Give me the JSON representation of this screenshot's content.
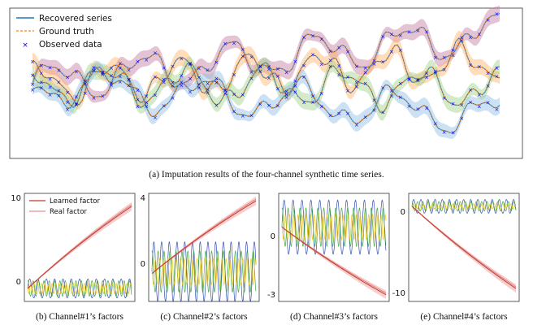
{
  "colors": {
    "recovered": "#1f77b4",
    "ground_truth": "#ff7f0e",
    "observed": "#0000ee",
    "channel_band": [
      "#c27ba0",
      "#ffb266",
      "#9fd28a",
      "#8fbfe6"
    ],
    "learned": "#c0392b",
    "real": "#e57373",
    "periodic": [
      "#1f3ea8",
      "#2ca02c",
      "#f2c200",
      "#7e3fbf"
    ]
  },
  "chart_data": [
    {
      "type": "line",
      "caption": "(a) Imputation results of the four-channel synthetic time series.",
      "legend": {
        "placement": "top-left",
        "entries": [
          "Recovered series",
          "Ground truth",
          "Observed data"
        ]
      },
      "series_count": 4,
      "n_points": 161,
      "start_values": [
        0,
        0,
        0,
        0
      ],
      "trend_end": [
        2.4,
        1.0,
        -0.2,
        -1.5
      ],
      "period": [
        30,
        24,
        27,
        33
      ],
      "grid": false
    },
    {
      "type": "line",
      "caption": "(b) Channel#1’s factors",
      "legend": {
        "placement": "top-left",
        "entries": [
          "Learned factor",
          "Real factor"
        ]
      },
      "yticks": [
        0,
        10
      ],
      "ylim": [
        -1.5,
        11
      ],
      "trend": [
        0,
        9.5
      ],
      "periodic_amp": [
        1.1,
        0.9,
        0.6
      ],
      "periodic_period": [
        14,
        9,
        6
      ]
    },
    {
      "type": "line",
      "caption": "(c) Channel#2’s factors",
      "yticks": [
        0,
        4
      ],
      "ylim": [
        -1.6,
        4.2
      ],
      "trend": [
        -0.1,
        3.8
      ],
      "periodic_amp": [
        1.6,
        1.1,
        0.7
      ],
      "periodic_period": [
        13,
        10,
        7
      ]
    },
    {
      "type": "line",
      "caption": "(d) Channel#3’s factors",
      "yticks": [
        0,
        -3
      ],
      "ylim": [
        -3.3,
        1.5
      ],
      "trend": [
        0,
        -3.0
      ],
      "periodic_amp": [
        1.2,
        0.85,
        0.55
      ],
      "periodic_period": [
        15,
        10,
        7
      ]
    },
    {
      "type": "line",
      "caption": "(e) Channel#4’s factors",
      "yticks": [
        0,
        -10
      ],
      "ylim": [
        -11,
        1.5
      ],
      "trend": [
        0,
        -9.5
      ],
      "periodic_amp": [
        0.8,
        0.55,
        0.3
      ],
      "periodic_period": [
        12,
        9,
        7
      ]
    }
  ]
}
